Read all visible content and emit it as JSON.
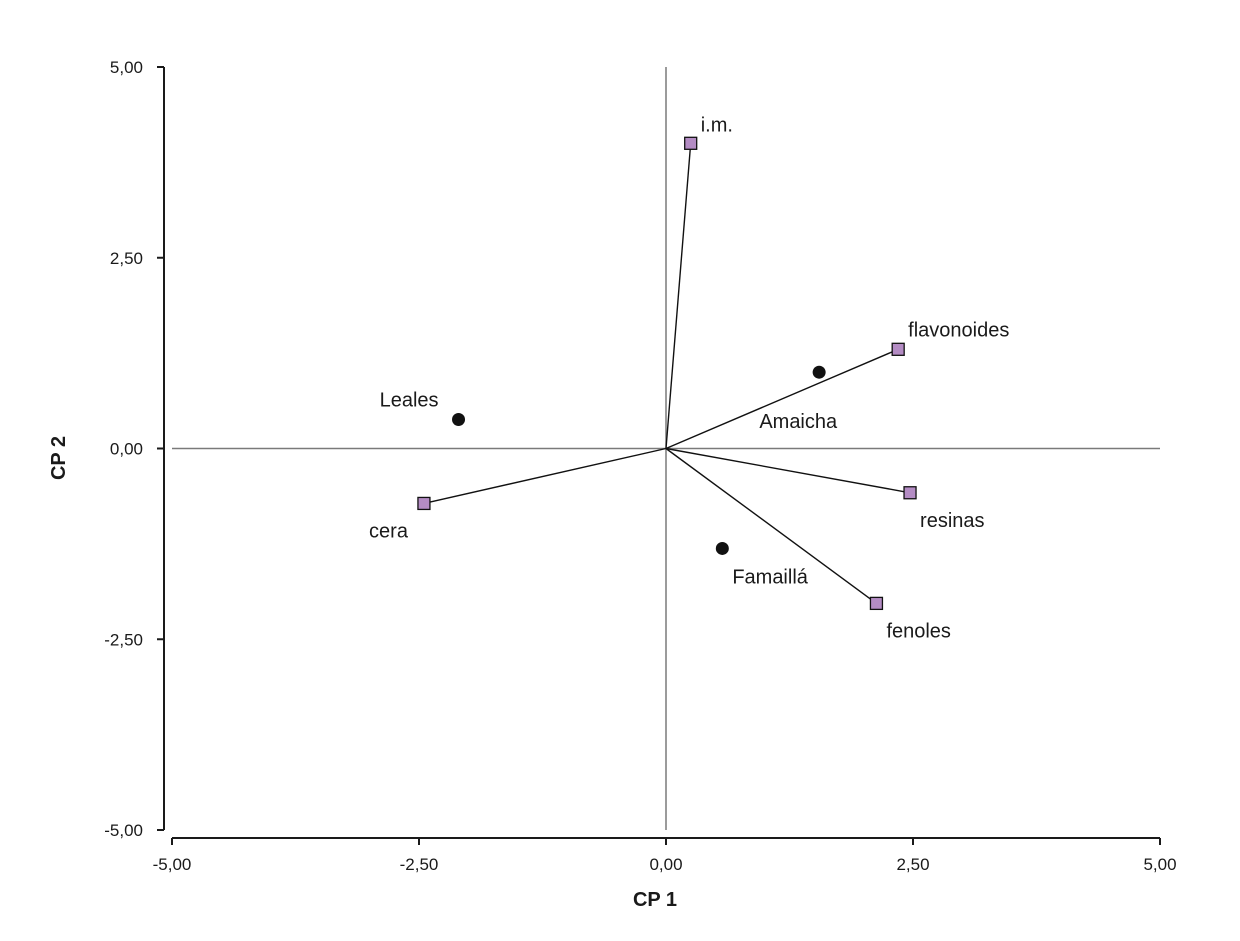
{
  "chart_data": {
    "type": "scatter",
    "subtype": "pca-biplot",
    "title": "",
    "xlabel": "CP 1",
    "ylabel": "CP 2",
    "xlim": [
      -5,
      5
    ],
    "ylim": [
      -5,
      5
    ],
    "x_ticks": [
      -5,
      -2.5,
      0,
      2.5,
      5
    ],
    "y_ticks": [
      5,
      2.5,
      0,
      -2.5,
      -5
    ],
    "x_tick_labels": [
      "-5,00",
      "-2,50",
      "0,00",
      "2,50",
      "5,00"
    ],
    "y_tick_labels": [
      "5,00",
      "2,50",
      "0,00",
      "-2,50",
      "-5,00"
    ],
    "grid": false,
    "reference_lines": "x=0 and y=0",
    "vector_color": "#b48cc4",
    "point_color": "#111111",
    "vectors": [
      {
        "label": "i.m.",
        "x": 0.25,
        "y": 4.0
      },
      {
        "label": "flavonoides",
        "x": 2.35,
        "y": 1.3
      },
      {
        "label": "resinas",
        "x": 2.47,
        "y": -0.58
      },
      {
        "label": "fenoles",
        "x": 2.13,
        "y": -2.03
      },
      {
        "label": "cera",
        "x": -2.45,
        "y": -0.72
      }
    ],
    "points": [
      {
        "label": "Leales",
        "x": -2.1,
        "y": 0.38
      },
      {
        "label": "Amaicha",
        "x": 1.55,
        "y": 1.0
      },
      {
        "label": "Famaillá",
        "x": 0.57,
        "y": -1.31
      }
    ]
  }
}
